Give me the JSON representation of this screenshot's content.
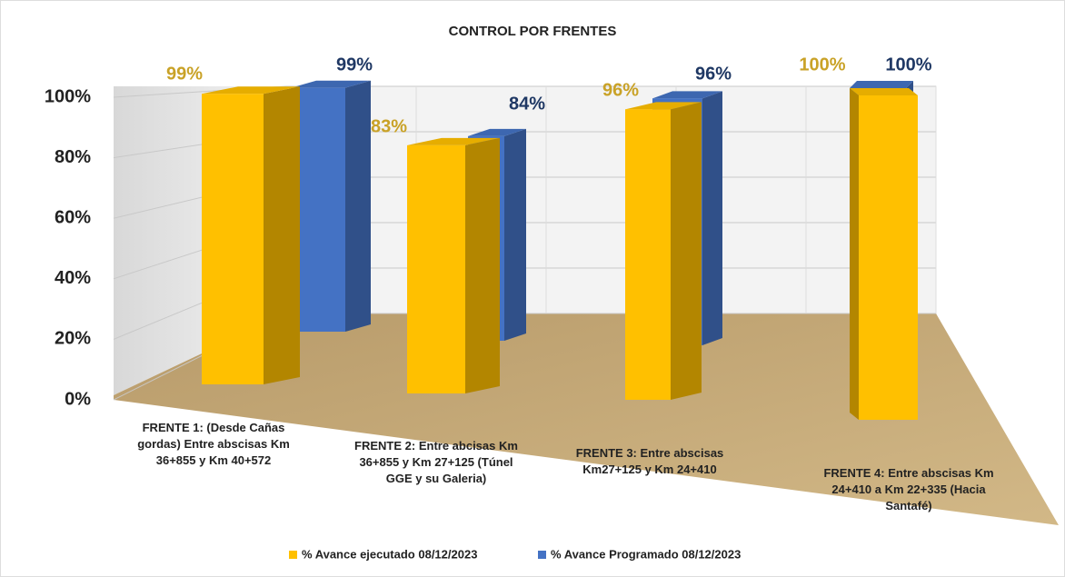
{
  "chart_data": {
    "type": "bar3d",
    "title": "CONTROL POR FRENTES",
    "categories": [
      "FRENTE 1: (Desde Cañas gordas) Entre abscisas Km 36+855 y Km 40+572",
      "FRENTE 2: Entre abcisas Km 36+855 y Km 27+125 (Túnel GGE y su Galeria)",
      "FRENTE 3: Entre abscisas Km27+125 y Km 24+410",
      "FRENTE 4: Entre abscisas Km 24+410 a Km 22+335 (Hacia Santafé)"
    ],
    "series": [
      {
        "name": "% Avance ejecutado 08/12/2023",
        "color": "#FFC000",
        "values": [
          99,
          83,
          96,
          100
        ],
        "value_labels": [
          "99%",
          "83%",
          "96%",
          "100%"
        ]
      },
      {
        "name": "% Avance Programado 08/12/2023",
        "color": "#4472C4",
        "values": [
          99,
          84,
          96,
          100
        ],
        "value_labels": [
          "99%",
          "84%",
          "96%",
          "100%"
        ]
      }
    ],
    "ylim": [
      0,
      100
    ],
    "yticks": [
      {
        "value": 0,
        "label": "0%"
      },
      {
        "value": 20,
        "label": "20%"
      },
      {
        "value": 40,
        "label": "40%"
      },
      {
        "value": 60,
        "label": "60%"
      },
      {
        "value": 80,
        "label": "80%"
      },
      {
        "value": 100,
        "label": "100%"
      }
    ],
    "grid": true,
    "legend": "bottom"
  }
}
